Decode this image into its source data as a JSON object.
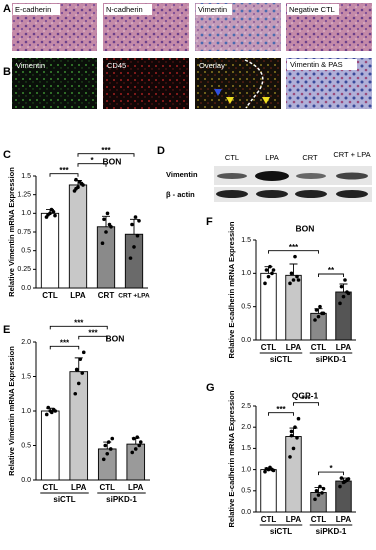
{
  "panel_labels": [
    "A",
    "B",
    "C",
    "D",
    "E",
    "F",
    "G"
  ],
  "images_a": [
    "E-cadherin",
    "N-cadherin",
    "Vimentin",
    "Negative CTL"
  ],
  "images_b": [
    "Vimentin",
    "CD45",
    "Overlay",
    "Vimentin & PAS"
  ],
  "blot": {
    "columns": [
      "CTL",
      "LPA",
      "CRT",
      "CRT + LPA"
    ],
    "rows": [
      "Vimentin",
      "β - actin"
    ]
  },
  "chart_data": [
    {
      "type": "bar",
      "title": "BON",
      "y_label": "Relative Vimentin mRNA Expression",
      "categories": [
        "CTL",
        "LPA",
        "CRT",
        "CRT +LPA"
      ],
      "values": [
        1.0,
        1.38,
        0.82,
        0.72
      ],
      "errors": [
        0.05,
        0.06,
        0.14,
        0.2
      ],
      "points": [
        [
          0.95,
          1.0,
          1.02,
          0.98,
          1.05,
          0.97
        ],
        [
          1.3,
          1.35,
          1.4,
          1.45,
          1.42,
          1.38,
          1.33
        ],
        [
          0.6,
          0.75,
          0.85,
          0.92,
          1.0,
          0.82
        ],
        [
          0.4,
          0.55,
          0.7,
          0.85,
          0.95,
          0.9
        ]
      ],
      "colors": [
        "#ffffff",
        "#c8c8c8",
        "#8a8a8a",
        "#6a6a6a"
      ],
      "ylim": [
        0,
        1.5
      ],
      "yticks": [
        {
          "value": 0,
          "label": "0.0"
        },
        0.25,
        0.5,
        0.75,
        {
          "value": 1,
          "label": "1.0"
        },
        1.25,
        1.5
      ],
      "significance": [
        {
          "pair": [
            0,
            1
          ],
          "label": "***"
        },
        {
          "pair": [
            1,
            2
          ],
          "label": "*"
        },
        {
          "pair": [
            1,
            3
          ],
          "label": "***"
        }
      ]
    },
    {
      "type": "bar",
      "title": "BON",
      "y_label": "Relative Vimentin mRNA Expression",
      "categories": [
        "CTL",
        "LPA",
        "CTL",
        "LPA"
      ],
      "group_labels": [
        "siCTL",
        "siPKD-1"
      ],
      "values": [
        1.0,
        1.57,
        0.45,
        0.52
      ],
      "errors": [
        0.04,
        0.2,
        0.1,
        0.09
      ],
      "points": [
        [
          0.95,
          1.0,
          1.02,
          1.05,
          0.98,
          1.0
        ],
        [
          1.25,
          1.4,
          1.55,
          1.6,
          1.75,
          1.85,
          1.6
        ],
        [
          0.3,
          0.38,
          0.45,
          0.5,
          0.55,
          0.6
        ],
        [
          0.4,
          0.45,
          0.5,
          0.6,
          0.62,
          0.55
        ]
      ],
      "colors": [
        "#ffffff",
        "#c8c8c8",
        "#9a9a9a",
        "#9a9a9a"
      ],
      "ylim": [
        0,
        2
      ],
      "yticks": [
        {
          "value": 0,
          "label": "0.0"
        },
        0.5,
        {
          "value": 1,
          "label": "1.0"
        },
        1.5,
        {
          "value": 2,
          "label": "2.0"
        }
      ],
      "significance": [
        {
          "pair": [
            0,
            1
          ],
          "label": "***"
        },
        {
          "pair": [
            1,
            2
          ],
          "label": "***"
        },
        {
          "pair": [
            0,
            2
          ],
          "label": "***"
        }
      ]
    },
    {
      "type": "bar",
      "title": "BON",
      "y_label": "Relative E-cadherin mRNA Expression",
      "categories": [
        "CTL",
        "LPA",
        "CTL",
        "LPA"
      ],
      "group_labels": [
        "siCTL",
        "siPKD-1"
      ],
      "values": [
        1.0,
        0.97,
        0.4,
        0.72
      ],
      "errors": [
        0.1,
        0.17,
        0.07,
        0.12
      ],
      "points": [
        [
          0.85,
          0.95,
          1.0,
          1.05,
          1.1,
          1.05
        ],
        [
          0.85,
          0.9,
          0.95,
          1.0,
          1.25,
          0.9
        ],
        [
          0.3,
          0.35,
          0.4,
          0.45,
          0.5,
          0.4
        ],
        [
          0.55,
          0.65,
          0.72,
          0.8,
          0.9,
          0.7
        ]
      ],
      "colors": [
        "#ffffff",
        "#c8c8c8",
        "#8a8a8a",
        "#555555"
      ],
      "ylim": [
        0,
        1.5
      ],
      "yticks": [
        {
          "value": 0,
          "label": "0.0"
        },
        0.5,
        {
          "value": 1,
          "label": "1.0"
        },
        1.5
      ],
      "significance": [
        {
          "pair": [
            2,
            3
          ],
          "label": "**"
        },
        {
          "pair": [
            0,
            2
          ],
          "label": "***"
        }
      ]
    },
    {
      "type": "bar",
      "title": "QGP-1",
      "y_label": "Relative E-cadherin mRNA Expression",
      "categories": [
        "CTL",
        "LPA",
        "CTL",
        "LPA"
      ],
      "group_labels": [
        "siCTL",
        "siPKD-1"
      ],
      "values": [
        1.0,
        1.78,
        0.46,
        0.73
      ],
      "errors": [
        0.04,
        0.2,
        0.12,
        0.07
      ],
      "points": [
        [
          0.95,
          1.0,
          1.0,
          1.02,
          1.05,
          0.98
        ],
        [
          1.3,
          1.5,
          1.75,
          1.8,
          2.0,
          2.2,
          1.9
        ],
        [
          0.3,
          0.4,
          0.45,
          0.5,
          0.6,
          0.55
        ],
        [
          0.6,
          0.7,
          0.75,
          0.8,
          0.72,
          0.78
        ]
      ],
      "colors": [
        "#ffffff",
        "#c8c8c8",
        "#8a8a8a",
        "#555555"
      ],
      "ylim": [
        0,
        2.5
      ],
      "yticks": [
        {
          "value": 0,
          "label": "0.0"
        },
        0.5,
        {
          "value": 1,
          "label": "1.0"
        },
        1.5,
        {
          "value": 2,
          "label": "2.0"
        },
        2.5
      ],
      "significance": [
        {
          "pair": [
            2,
            3
          ],
          "label": "*"
        },
        {
          "pair": [
            0,
            1
          ],
          "label": "***"
        },
        {
          "pair": [
            1,
            2
          ],
          "label": "***"
        }
      ]
    }
  ]
}
